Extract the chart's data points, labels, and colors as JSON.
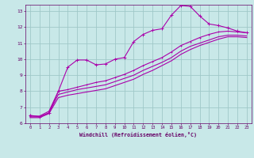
{
  "bg_color": "#c8e8e8",
  "grid_color": "#a0c8c8",
  "line_color": "#aa00aa",
  "xlabel": "Windchill (Refroidissement éolien,°C)",
  "xlabel_color": "#660066",
  "tick_color": "#660066",
  "xlim": [
    -0.5,
    23.5
  ],
  "ylim": [
    6,
    13.4
  ],
  "yticks": [
    6,
    7,
    8,
    9,
    10,
    11,
    12,
    13
  ],
  "xticks": [
    0,
    1,
    2,
    3,
    4,
    5,
    6,
    7,
    8,
    9,
    10,
    11,
    12,
    13,
    14,
    15,
    16,
    17,
    18,
    19,
    20,
    21,
    22,
    23
  ],
  "line1_x": [
    0,
    1,
    2,
    3,
    4,
    5,
    6,
    7,
    8,
    9,
    10,
    11,
    12,
    13,
    14,
    15,
    16,
    17,
    18,
    19,
    20,
    21,
    22,
    23
  ],
  "line1_y": [
    6.5,
    6.4,
    6.65,
    8.0,
    9.5,
    9.95,
    9.95,
    9.65,
    9.7,
    10.0,
    10.1,
    11.1,
    11.55,
    11.8,
    11.9,
    12.75,
    13.35,
    13.3,
    12.7,
    12.2,
    12.1,
    11.95,
    11.75,
    11.65
  ],
  "line2_x": [
    0,
    1,
    2,
    3,
    4,
    5,
    6,
    7,
    8,
    9,
    10,
    11,
    12,
    13,
    14,
    15,
    16,
    17,
    18,
    19,
    20,
    21,
    22,
    23
  ],
  "line2_y": [
    6.45,
    6.45,
    6.75,
    8.0,
    8.1,
    8.25,
    8.4,
    8.55,
    8.65,
    8.85,
    9.05,
    9.3,
    9.6,
    9.85,
    10.1,
    10.45,
    10.85,
    11.1,
    11.35,
    11.55,
    11.7,
    11.75,
    11.7,
    11.65
  ],
  "line3_x": [
    0,
    1,
    2,
    3,
    4,
    5,
    6,
    7,
    8,
    9,
    10,
    11,
    12,
    13,
    14,
    15,
    16,
    17,
    18,
    19,
    20,
    21,
    22,
    23
  ],
  "line3_y": [
    6.4,
    6.4,
    6.65,
    7.8,
    7.95,
    8.1,
    8.2,
    8.3,
    8.4,
    8.6,
    8.8,
    9.0,
    9.3,
    9.55,
    9.8,
    10.1,
    10.5,
    10.8,
    11.0,
    11.2,
    11.4,
    11.5,
    11.5,
    11.45
  ],
  "line4_x": [
    0,
    1,
    2,
    3,
    4,
    5,
    6,
    7,
    8,
    9,
    10,
    11,
    12,
    13,
    14,
    15,
    16,
    17,
    18,
    19,
    20,
    21,
    22,
    23
  ],
  "line4_y": [
    6.35,
    6.35,
    6.6,
    7.6,
    7.75,
    7.85,
    7.95,
    8.05,
    8.15,
    8.35,
    8.55,
    8.75,
    9.05,
    9.3,
    9.6,
    9.9,
    10.3,
    10.6,
    10.85,
    11.05,
    11.25,
    11.4,
    11.4,
    11.35
  ]
}
